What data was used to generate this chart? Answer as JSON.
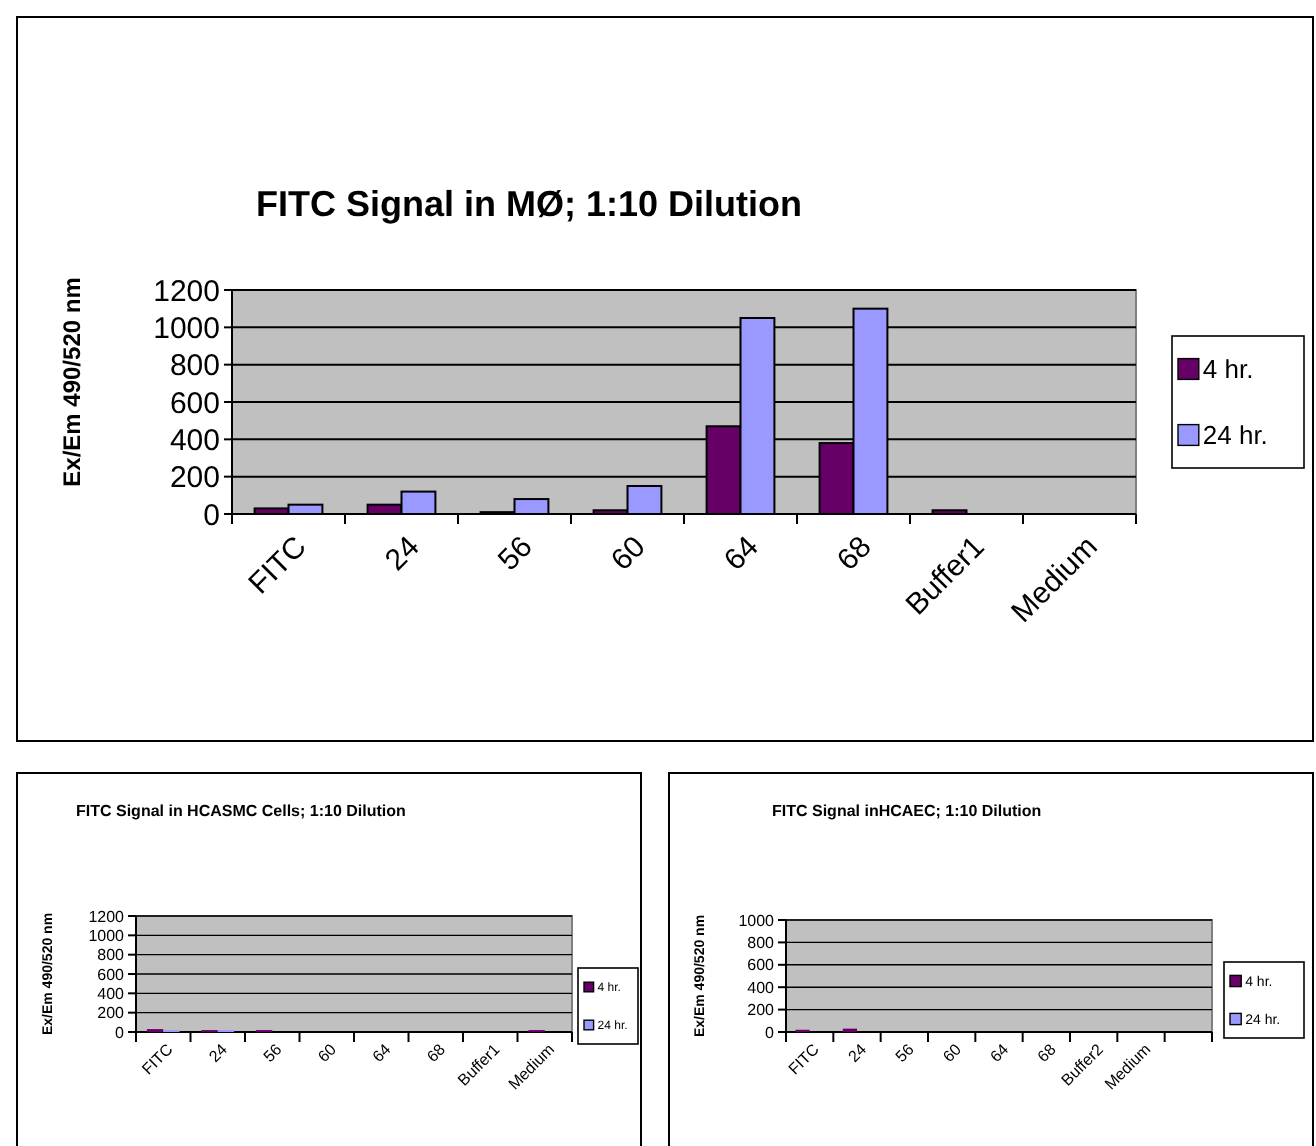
{
  "chart_data": [
    {
      "type": "bar",
      "title": "FITC Signal in MØ; 1:10 Dilution",
      "ylabel": "Ex/Em 490/520 nm",
      "categories": [
        "FITC",
        "24",
        "56",
        "60",
        "64",
        "68",
        "Buffer1",
        "Medium"
      ],
      "ylim": [
        0,
        1200
      ],
      "yticks": [
        0,
        200,
        400,
        600,
        800,
        1000,
        1200
      ],
      "grid": "y",
      "legend": "right",
      "series": [
        {
          "name": "4 hr.",
          "color": "#660066",
          "values": [
            30,
            50,
            10,
            20,
            470,
            380,
            20,
            0
          ]
        },
        {
          "name": "24 hr.",
          "color": "#9999ff",
          "values": [
            50,
            120,
            80,
            150,
            1050,
            1100,
            0,
            0
          ]
        }
      ]
    },
    {
      "type": "bar",
      "title": "FITC Signal in HCASMC Cells; 1:10 Dilution",
      "ylabel": "Ex/Em 490/520 nm",
      "categories": [
        "FITC",
        "24",
        "56",
        "60",
        "64",
        "68",
        "Buffer1",
        "Medium"
      ],
      "ylim": [
        0,
        1200
      ],
      "yticks": [
        0,
        200,
        400,
        600,
        800,
        1000,
        1200
      ],
      "grid": "y",
      "legend": "right",
      "series": [
        {
          "name": "4 hr.",
          "color": "#660066",
          "values": [
            30,
            20,
            20,
            0,
            0,
            0,
            0,
            20
          ]
        },
        {
          "name": "24 hr.",
          "color": "#9999ff",
          "values": [
            20,
            20,
            0,
            0,
            0,
            0,
            0,
            0
          ]
        }
      ]
    },
    {
      "type": "bar",
      "title": "FITC Signal inHCAEC; 1:10 Dilution",
      "ylabel": "Ex/Em 490/520 nm",
      "categories": [
        "FITC",
        "24",
        "56",
        "60",
        "64",
        "68",
        "Buffer2",
        "Medium",
        null
      ],
      "ylim": [
        0,
        1000
      ],
      "yticks": [
        0,
        200,
        400,
        600,
        800,
        1000
      ],
      "grid": "y",
      "legend": "right",
      "series": [
        {
          "name": "4 hr.",
          "color": "#660066",
          "values": [
            20,
            30,
            0,
            0,
            0,
            0,
            0,
            0,
            null
          ]
        },
        {
          "name": "24 hr.",
          "color": "#9999ff",
          "values": [
            0,
            0,
            0,
            0,
            0,
            0,
            0,
            0,
            null
          ]
        }
      ]
    }
  ]
}
